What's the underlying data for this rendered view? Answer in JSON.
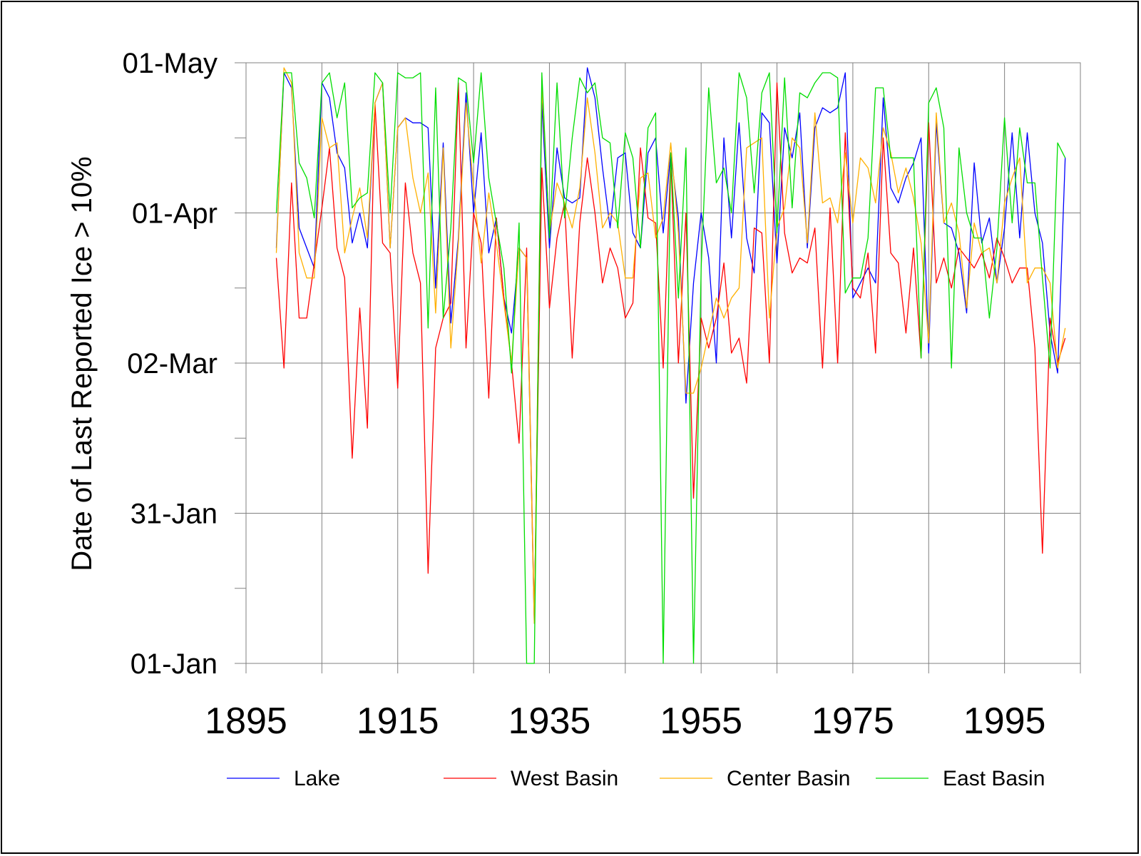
{
  "chart_data": {
    "type": "line",
    "title": "",
    "xlabel": "",
    "ylabel": "Date of Last Reported Ice > 10%",
    "xlim": [
      1895,
      2005
    ],
    "x_ticks": [
      1895,
      1915,
      1935,
      1955,
      1975,
      1995
    ],
    "y_axis": {
      "unit": "day of year",
      "ylim": [
        1,
        121
      ],
      "tick_values": [
        1,
        31,
        61,
        91,
        121
      ],
      "tick_labels": [
        "01-Jan",
        "31-Jan",
        "02-Mar",
        "01-Apr",
        "01-May"
      ]
    },
    "grid": true,
    "legend_placement": "bottom",
    "x": [
      1899,
      1900,
      1901,
      1902,
      1903,
      1904,
      1905,
      1906,
      1907,
      1908,
      1909,
      1910,
      1911,
      1912,
      1913,
      1914,
      1915,
      1916,
      1917,
      1918,
      1919,
      1920,
      1921,
      1922,
      1923,
      1924,
      1925,
      1926,
      1927,
      1928,
      1929,
      1930,
      1931,
      1932,
      1933,
      1934,
      1935,
      1936,
      1937,
      1938,
      1939,
      1940,
      1941,
      1942,
      1943,
      1944,
      1945,
      1946,
      1947,
      1948,
      1949,
      1950,
      1951,
      1952,
      1953,
      1954,
      1955,
      1956,
      1957,
      1958,
      1959,
      1960,
      1961,
      1962,
      1963,
      1964,
      1965,
      1966,
      1967,
      1968,
      1969,
      1970,
      1971,
      1972,
      1973,
      1974,
      1975,
      1976,
      1977,
      1978,
      1979,
      1980,
      1981,
      1982,
      1983,
      1984,
      1985,
      1986,
      1987,
      1988,
      1989,
      1990,
      1991,
      1992,
      1993,
      1994,
      1995,
      1996,
      1997,
      1998,
      1999,
      2000,
      2001,
      2002,
      2003
    ],
    "series": [
      {
        "name": "Lake",
        "color": "#0000ff",
        "values": [
          84,
          119,
          116,
          88,
          84,
          80,
          117,
          114,
          103,
          100,
          85,
          91,
          84,
          113,
          117,
          84,
          108,
          110,
          109,
          109,
          108,
          76,
          105,
          69,
          86,
          115,
          91,
          107,
          83,
          90,
          74,
          67,
          84,
          82,
          9,
          113,
          84,
          104,
          94,
          93,
          94,
          120,
          114,
          100,
          88,
          102,
          103,
          87,
          84,
          103,
          106,
          87,
          103,
          90,
          53,
          77,
          91,
          82,
          61,
          106,
          86,
          109,
          86,
          79,
          111,
          109,
          81,
          108,
          102,
          111,
          84,
          108,
          112,
          111,
          112,
          119,
          74,
          77,
          80,
          77,
          114,
          96,
          93,
          98,
          101,
          106,
          63,
          109,
          89,
          88,
          83,
          71,
          101,
          85,
          90,
          77,
          88,
          107,
          86,
          107,
          91,
          85,
          67,
          59,
          102
        ]
      },
      {
        "name": "West Basin",
        "color": "#ff0000",
        "values": [
          82,
          60,
          97,
          70,
          70,
          81,
          92,
          104,
          84,
          78,
          42,
          72,
          48,
          113,
          85,
          83,
          56,
          97,
          83,
          77,
          19,
          64,
          70,
          73,
          117,
          64,
          91,
          85,
          54,
          90,
          74,
          61,
          45,
          84,
          10,
          100,
          72,
          86,
          93,
          62,
          89,
          102,
          91,
          77,
          84,
          80,
          70,
          73,
          104,
          90,
          89,
          60,
          102,
          61,
          91,
          34,
          70,
          64,
          70,
          81,
          63,
          66,
          57,
          88,
          87,
          61,
          117,
          87,
          79,
          82,
          81,
          88,
          60,
          92,
          61,
          107,
          76,
          74,
          83,
          63,
          106,
          83,
          81,
          67,
          84,
          62,
          109,
          77,
          82,
          76,
          84,
          82,
          80,
          83,
          78,
          86,
          82,
          77,
          80,
          80,
          64,
          23,
          70,
          61,
          66
        ]
      },
      {
        "name": "Center Basin",
        "color": "#ffb000",
        "values": [
          83,
          120,
          117,
          83,
          78,
          78,
          110,
          104,
          105,
          83,
          90,
          96,
          86,
          113,
          117,
          84,
          108,
          110,
          98,
          91,
          99,
          71,
          104,
          64,
          85,
          113,
          96,
          81,
          95,
          85,
          73,
          61,
          84,
          82,
          9,
          116,
          87,
          97,
          93,
          88,
          96,
          114,
          103,
          88,
          91,
          89,
          78,
          78,
          98,
          99,
          86,
          90,
          105,
          87,
          55,
          55,
          60,
          67,
          74,
          70,
          74,
          76,
          104,
          105,
          106,
          70,
          88,
          92,
          106,
          104,
          85,
          111,
          93,
          94,
          89,
          103,
          89,
          102,
          100,
          93,
          108,
          103,
          95,
          100,
          94,
          85,
          65,
          111,
          89,
          93,
          87,
          72,
          89,
          83,
          84,
          77,
          93,
          98,
          102,
          77,
          80,
          80,
          77,
          60,
          68
        ]
      },
      {
        "name": "East Basin",
        "color": "#00dd00",
        "values": [
          91,
          119,
          119,
          101,
          98,
          90,
          117,
          119,
          110,
          117,
          92,
          94,
          95,
          119,
          117,
          91,
          119,
          118,
          118,
          119,
          68,
          116,
          70,
          88,
          118,
          117,
          101,
          119,
          98,
          89,
          80,
          59,
          89,
          1,
          1,
          119,
          86,
          117,
          90,
          106,
          118,
          115,
          117,
          106,
          105,
          88,
          107,
          102,
          84,
          108,
          111,
          1,
          103,
          74,
          104,
          1,
          80,
          116,
          97,
          100,
          91,
          119,
          114,
          95,
          115,
          119,
          87,
          118,
          92,
          115,
          114,
          117,
          119,
          119,
          118,
          75,
          78,
          78,
          86,
          116,
          116,
          102,
          102,
          102,
          102,
          62,
          113,
          116,
          108,
          60,
          104,
          91,
          86,
          86,
          70,
          84,
          110,
          89,
          108,
          97,
          97,
          78,
          60,
          105,
          102
        ]
      }
    ]
  }
}
